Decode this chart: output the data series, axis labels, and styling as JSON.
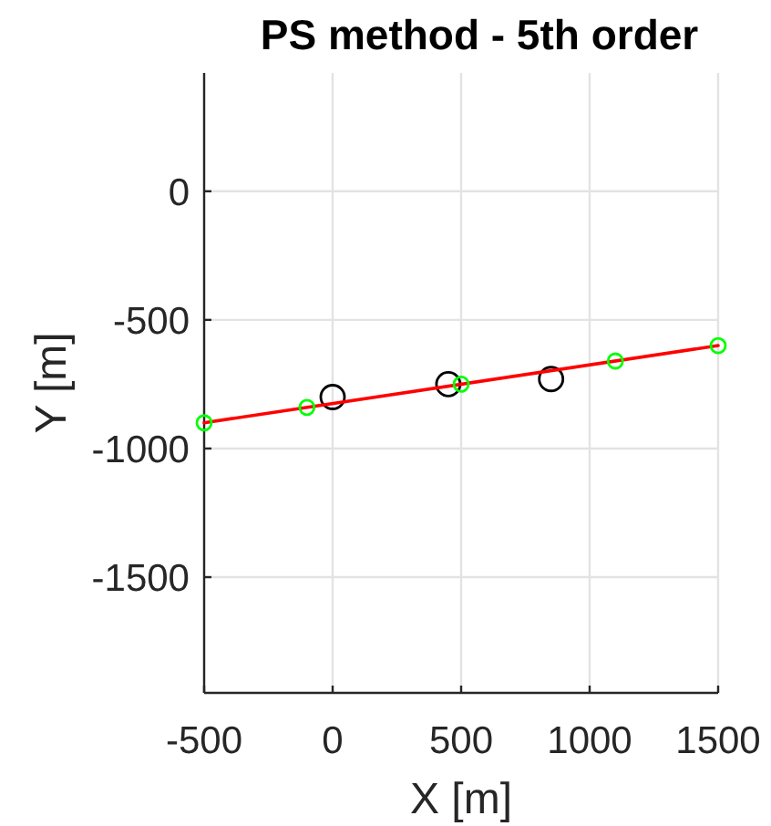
{
  "chart_data": {
    "type": "scatter",
    "title": "PS method - 5th order",
    "xlabel": "X [m]",
    "ylabel": "Y [m]",
    "xlim": [
      -500,
      1500
    ],
    "ylim": [
      -1950,
      460
    ],
    "xticks": [
      -500,
      0,
      500,
      1000,
      1500
    ],
    "yticks": [
      -1500,
      -1000,
      -500,
      0
    ],
    "grid": true,
    "marker": "circle",
    "series": [
      {
        "color": "#000000",
        "x": [
          0,
          450,
          850
        ],
        "values": [
          -800,
          -750,
          -730
        ]
      },
      {
        "type": "line",
        "color": "#ff0000",
        "x": [
          -500,
          1500
        ],
        "values": [
          -900,
          -600
        ],
        "marker": "none"
      },
      {
        "color": "#00ff00",
        "x": [
          -500,
          -100,
          500,
          1100,
          1500
        ],
        "values": [
          -900,
          -840,
          -750,
          -660,
          -600
        ]
      }
    ]
  }
}
